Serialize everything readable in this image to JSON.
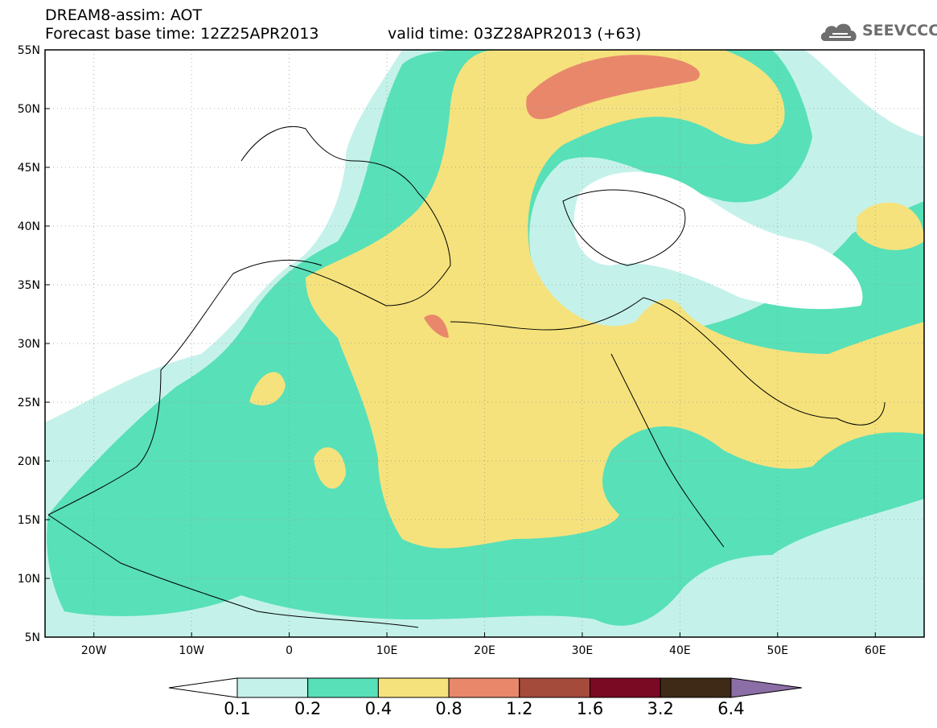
{
  "header": {
    "title": "DREAM8-assim: AOT",
    "base_time": "Forecast base time: 12Z25APR2013",
    "valid_time": "valid time: 03Z28APR2013 (+63)"
  },
  "logo": {
    "text": "SEEVCCC",
    "icon": "cloud-icon"
  },
  "map": {
    "lat_labels": [
      "55N",
      "50N",
      "45N",
      "40N",
      "35N",
      "30N",
      "25N",
      "20N",
      "15N",
      "10N",
      "5N"
    ],
    "lon_labels": [
      "20W",
      "10W",
      "0",
      "10E",
      "20E",
      "30E",
      "40E",
      "50E",
      "60E"
    ],
    "extent": {
      "lon_min": -25,
      "lon_max": 65,
      "lat_min": 5,
      "lat_max": 55
    }
  },
  "legend": {
    "values": [
      "0.1",
      "0.2",
      "0.4",
      "0.8",
      "1.2",
      "1.6",
      "3.2",
      "6.4"
    ],
    "colors": [
      "#ffffff",
      "#c4f2ea",
      "#58e0b8",
      "#f5e27c",
      "#e9876b",
      "#a44b3c",
      "#7a0a24",
      "#3e2a16",
      "#8c6ea6"
    ]
  }
}
